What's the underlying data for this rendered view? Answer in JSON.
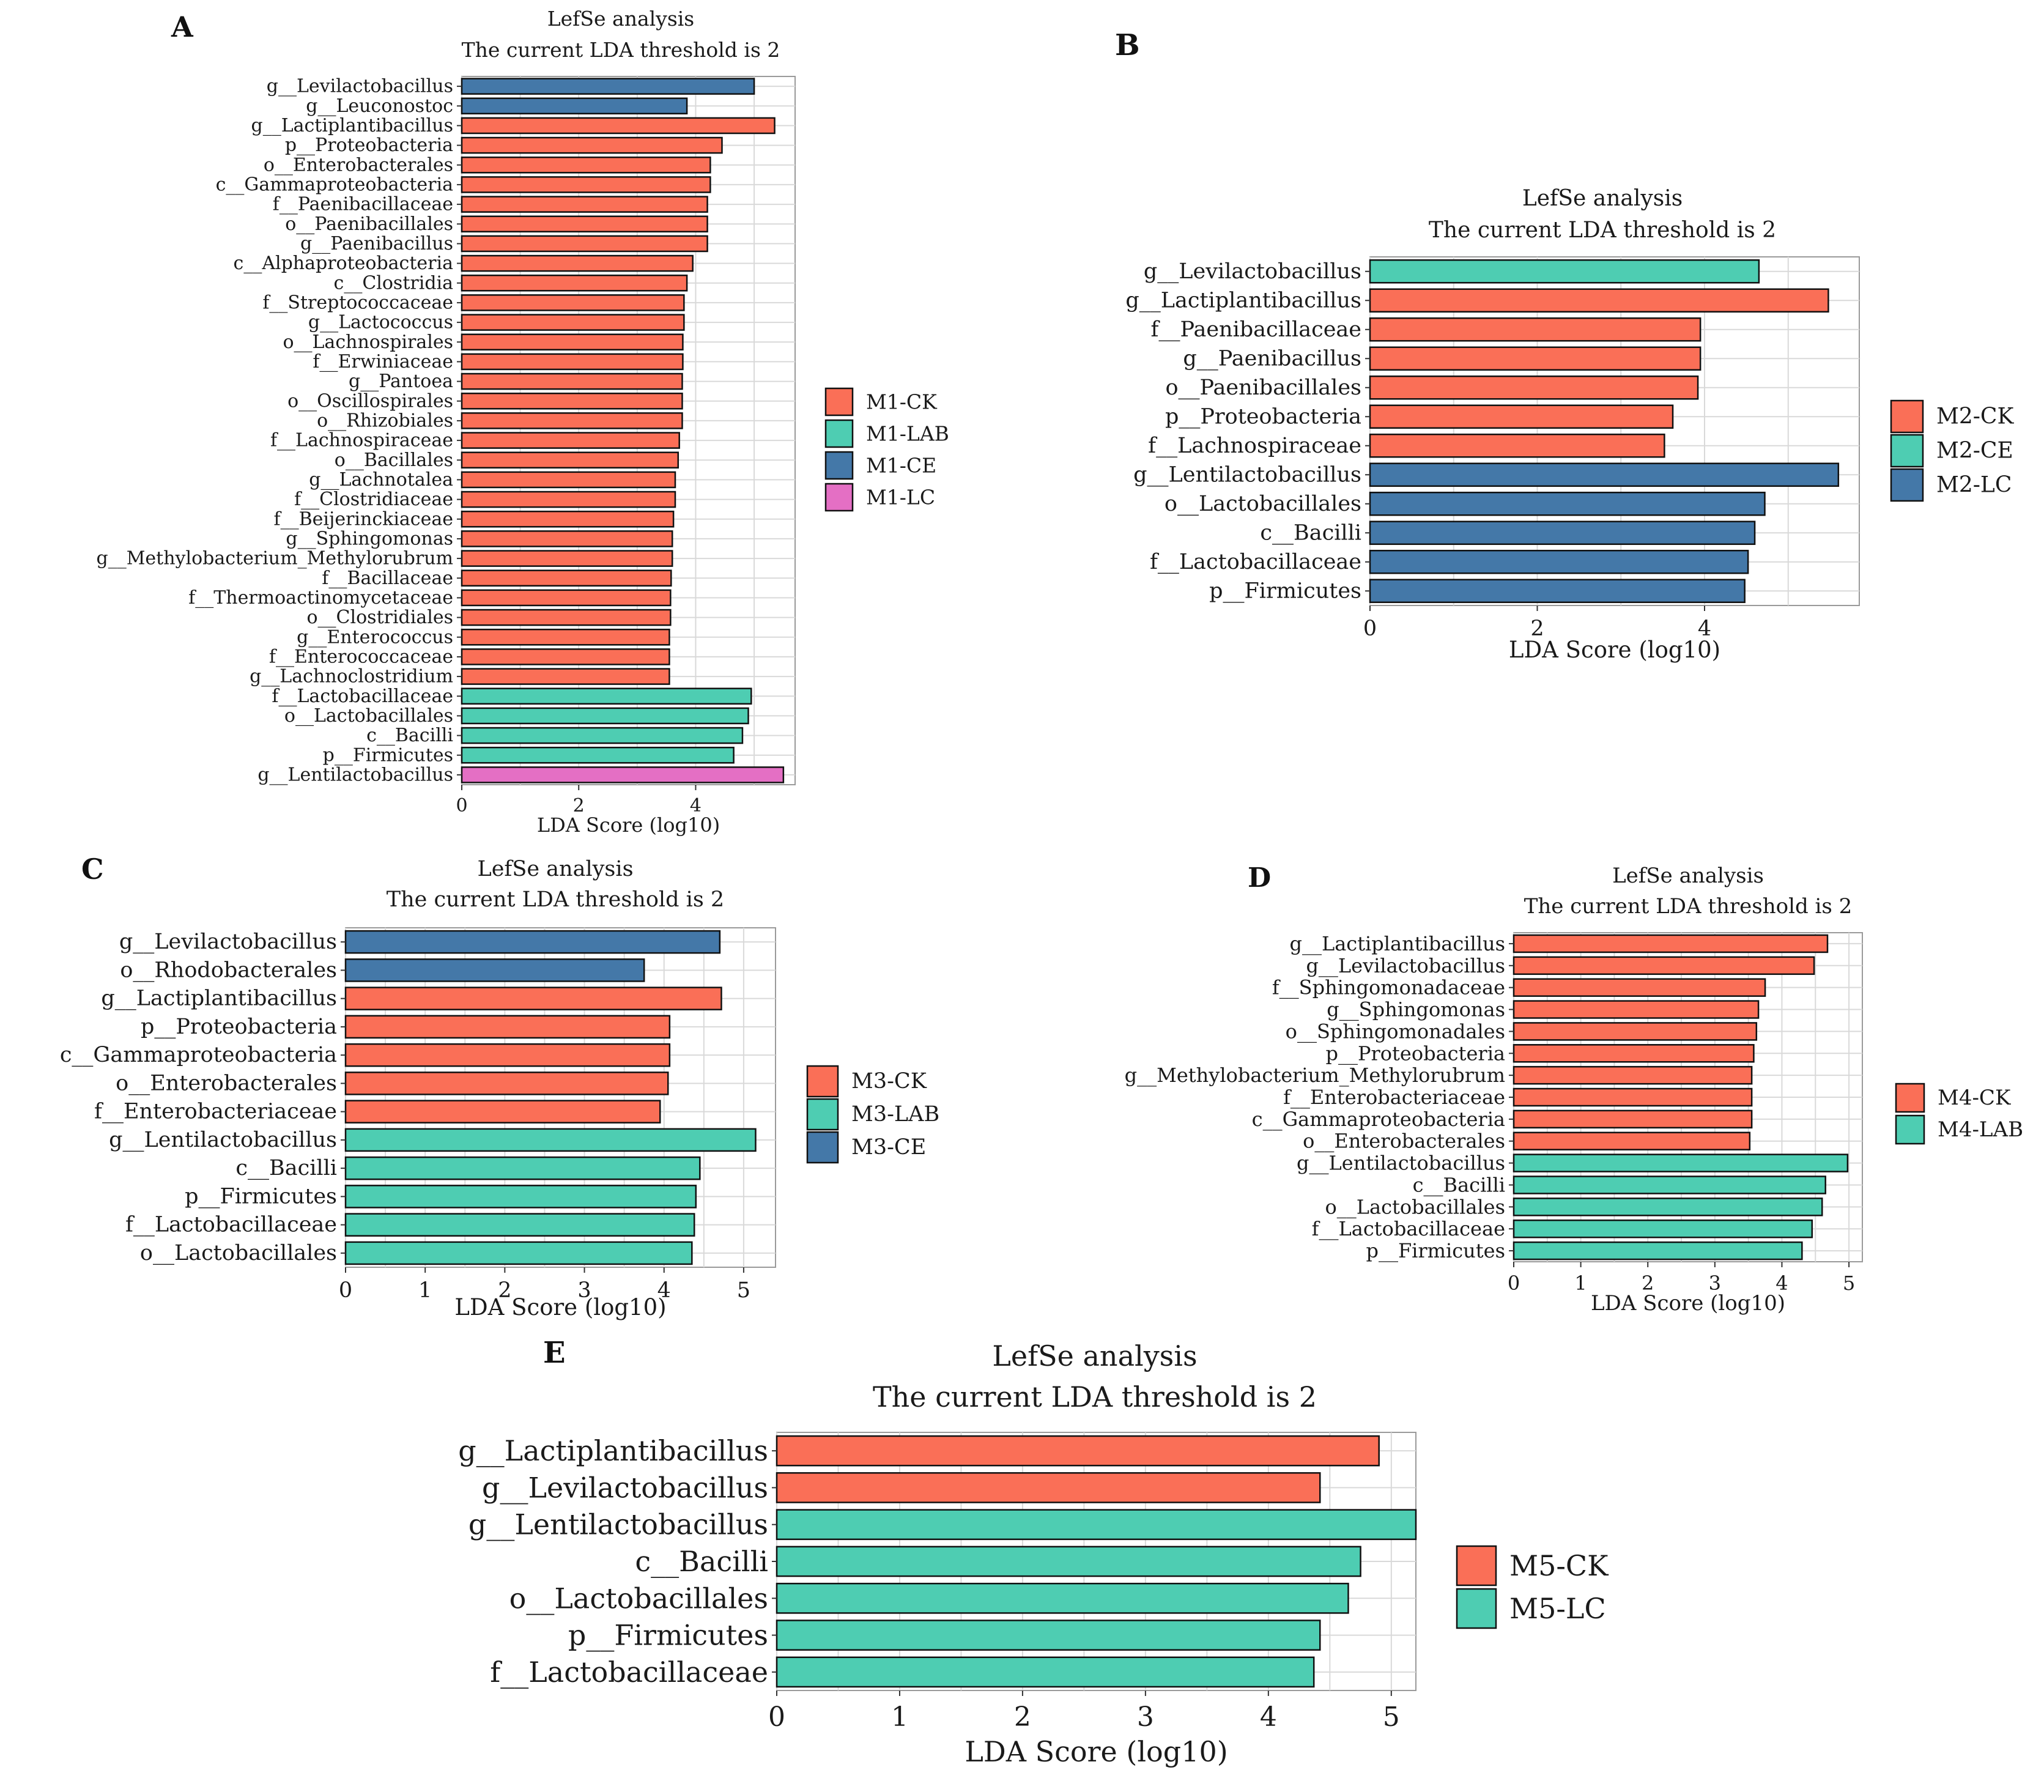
{
  "colors": {
    "CK": "#fa6f57",
    "LAB": "#4ecdb2",
    "CE": "#4478a8",
    "LC": "#e46fc4",
    "grid": "#d9d9d9",
    "bar_stroke": "#111111"
  },
  "chart_data": [
    {
      "panel": "A",
      "type": "bar",
      "orientation": "horizontal",
      "title": "LefSe analysis",
      "subtitle": "The current LDA threshold is 2",
      "xlabel": "LDA Score (log10)",
      "xticks": [
        0,
        2,
        4
      ],
      "xlim": [
        0,
        5.7
      ],
      "legend": [
        {
          "label": "M1-CK",
          "color_key": "CK"
        },
        {
          "label": "M1-LAB",
          "color_key": "LAB"
        },
        {
          "label": "M1-CE",
          "color_key": "CE"
        },
        {
          "label": "M1-LC",
          "color_key": "LC"
        }
      ],
      "bars": [
        {
          "label": "g__Levilactobacillus",
          "value": 5.0,
          "group": "CE"
        },
        {
          "label": "g__Leuconostoc",
          "value": 3.85,
          "group": "CE"
        },
        {
          "label": "g__Lactiplantibacillus",
          "value": 5.35,
          "group": "CK"
        },
        {
          "label": "p__Proteobacteria",
          "value": 4.45,
          "group": "CK"
        },
        {
          "label": "o__Enterobacterales",
          "value": 4.25,
          "group": "CK"
        },
        {
          "label": "c__Gammaproteobacteria",
          "value": 4.25,
          "group": "CK"
        },
        {
          "label": "f__Paenibacillaceae",
          "value": 4.2,
          "group": "CK"
        },
        {
          "label": "o__Paenibacillales",
          "value": 4.2,
          "group": "CK"
        },
        {
          "label": "g__Paenibacillus",
          "value": 4.2,
          "group": "CK"
        },
        {
          "label": "c__Alphaproteobacteria",
          "value": 3.95,
          "group": "CK"
        },
        {
          "label": "c__Clostridia",
          "value": 3.85,
          "group": "CK"
        },
        {
          "label": "f__Streptococcaceae",
          "value": 3.8,
          "group": "CK"
        },
        {
          "label": "g__Lactococcus",
          "value": 3.8,
          "group": "CK"
        },
        {
          "label": "o__Lachnospirales",
          "value": 3.78,
          "group": "CK"
        },
        {
          "label": "f__Erwiniaceae",
          "value": 3.78,
          "group": "CK"
        },
        {
          "label": "g__Pantoea",
          "value": 3.77,
          "group": "CK"
        },
        {
          "label": "o__Oscillospirales",
          "value": 3.77,
          "group": "CK"
        },
        {
          "label": "o__Rhizobiales",
          "value": 3.77,
          "group": "CK"
        },
        {
          "label": "f__Lachnospiraceae",
          "value": 3.72,
          "group": "CK"
        },
        {
          "label": "o__Bacillales",
          "value": 3.7,
          "group": "CK"
        },
        {
          "label": "g__Lachnotalea",
          "value": 3.65,
          "group": "CK"
        },
        {
          "label": "f__Clostridiaceae",
          "value": 3.65,
          "group": "CK"
        },
        {
          "label": "f__Beijerinckiaceae",
          "value": 3.62,
          "group": "CK"
        },
        {
          "label": "g__Sphingomonas",
          "value": 3.6,
          "group": "CK"
        },
        {
          "label": "g__Methylobacterium_Methylorubrum",
          "value": 3.6,
          "group": "CK"
        },
        {
          "label": "f__Bacillaceae",
          "value": 3.58,
          "group": "CK"
        },
        {
          "label": "f__Thermoactinomycetaceae",
          "value": 3.57,
          "group": "CK"
        },
        {
          "label": "o__Clostridiales",
          "value": 3.57,
          "group": "CK"
        },
        {
          "label": "g__Enterococcus",
          "value": 3.55,
          "group": "CK"
        },
        {
          "label": "f__Enterococcaceae",
          "value": 3.55,
          "group": "CK"
        },
        {
          "label": "g__Lachnoclostridium",
          "value": 3.55,
          "group": "CK"
        },
        {
          "label": "f__Lactobacillaceae",
          "value": 4.95,
          "group": "LAB"
        },
        {
          "label": "o__Lactobacillales",
          "value": 4.9,
          "group": "LAB"
        },
        {
          "label": "c__Bacilli",
          "value": 4.8,
          "group": "LAB"
        },
        {
          "label": "p__Firmicutes",
          "value": 4.65,
          "group": "LAB"
        },
        {
          "label": "g__Lentilactobacillus",
          "value": 5.5,
          "group": "LC"
        }
      ]
    },
    {
      "panel": "B",
      "type": "bar",
      "orientation": "horizontal",
      "title": "LefSe analysis",
      "subtitle": "The current LDA threshold is 2",
      "xlabel": "LDA Score (log10)",
      "xticks": [
        0,
        2,
        4
      ],
      "xlim": [
        0,
        5.85
      ],
      "legend": [
        {
          "label": "M2-CK",
          "color_key": "CK"
        },
        {
          "label": "M2-CE",
          "color_key": "LAB"
        },
        {
          "label": "M2-LC",
          "color_key": "CE"
        }
      ],
      "bars": [
        {
          "label": "g__Levilactobacillus",
          "value": 4.65,
          "group": "LAB"
        },
        {
          "label": "g__Lactiplantibacillus",
          "value": 5.48,
          "group": "CK"
        },
        {
          "label": "f__Paenibacillaceae",
          "value": 3.95,
          "group": "CK"
        },
        {
          "label": "g__Paenibacillus",
          "value": 3.95,
          "group": "CK"
        },
        {
          "label": "o__Paenibacillales",
          "value": 3.92,
          "group": "CK"
        },
        {
          "label": "p__Proteobacteria",
          "value": 3.62,
          "group": "CK"
        },
        {
          "label": "f__Lachnospiraceae",
          "value": 3.52,
          "group": "CK"
        },
        {
          "label": "g__Lentilactobacillus",
          "value": 5.6,
          "group": "CE"
        },
        {
          "label": "o__Lactobacillales",
          "value": 4.72,
          "group": "CE"
        },
        {
          "label": "c__Bacilli",
          "value": 4.6,
          "group": "CE"
        },
        {
          "label": "f__Lactobacillaceae",
          "value": 4.52,
          "group": "CE"
        },
        {
          "label": "p__Firmicutes",
          "value": 4.48,
          "group": "CE"
        }
      ]
    },
    {
      "panel": "C",
      "type": "bar",
      "orientation": "horizontal",
      "title": "LefSe analysis",
      "subtitle": "The current LDA threshold is 2",
      "xlabel": "LDA Score (log10)",
      "xticks": [
        0,
        1,
        2,
        3,
        4,
        5
      ],
      "xlim": [
        0,
        5.4
      ],
      "legend": [
        {
          "label": "M3-CK",
          "color_key": "CK"
        },
        {
          "label": "M3-LAB",
          "color_key": "LAB"
        },
        {
          "label": "M3-CE",
          "color_key": "CE"
        }
      ],
      "bars": [
        {
          "label": "g__Levilactobacillus",
          "value": 4.7,
          "group": "CE"
        },
        {
          "label": "o__Rhodobacterales",
          "value": 3.75,
          "group": "CE"
        },
        {
          "label": "g__Lactiplantibacillus",
          "value": 4.72,
          "group": "CK"
        },
        {
          "label": "p__Proteobacteria",
          "value": 4.07,
          "group": "CK"
        },
        {
          "label": "c__Gammaproteobacteria",
          "value": 4.07,
          "group": "CK"
        },
        {
          "label": "o__Enterobacterales",
          "value": 4.05,
          "group": "CK"
        },
        {
          "label": "f__Enterobacteriaceae",
          "value": 3.95,
          "group": "CK"
        },
        {
          "label": "g__Lentilactobacillus",
          "value": 5.15,
          "group": "LAB"
        },
        {
          "label": "c__Bacilli",
          "value": 4.45,
          "group": "LAB"
        },
        {
          "label": "p__Firmicutes",
          "value": 4.4,
          "group": "LAB"
        },
        {
          "label": "f__Lactobacillaceae",
          "value": 4.38,
          "group": "LAB"
        },
        {
          "label": "o__Lactobacillales",
          "value": 4.35,
          "group": "LAB"
        }
      ]
    },
    {
      "panel": "D",
      "type": "bar",
      "orientation": "horizontal",
      "title": "LefSe analysis",
      "subtitle": "The current LDA threshold is 2",
      "xlabel": "LDA Score (log10)",
      "xticks": [
        0,
        1,
        2,
        3,
        4,
        5
      ],
      "xlim": [
        0,
        5.2
      ],
      "legend": [
        {
          "label": "M4-CK",
          "color_key": "CK"
        },
        {
          "label": "M4-LAB",
          "color_key": "LAB"
        }
      ],
      "bars": [
        {
          "label": "g__Lactiplantibacillus",
          "value": 4.68,
          "group": "CK"
        },
        {
          "label": "g__Levilactobacillus",
          "value": 4.48,
          "group": "CK"
        },
        {
          "label": "f__Sphingomonadaceae",
          "value": 3.75,
          "group": "CK"
        },
        {
          "label": "g__Sphingomonas",
          "value": 3.65,
          "group": "CK"
        },
        {
          "label": "o__Sphingomonadales",
          "value": 3.62,
          "group": "CK"
        },
        {
          "label": "p__Proteobacteria",
          "value": 3.58,
          "group": "CK"
        },
        {
          "label": "g__Methylobacterium_Methylorubrum",
          "value": 3.55,
          "group": "CK"
        },
        {
          "label": "f__Enterobacteriaceae",
          "value": 3.55,
          "group": "CK"
        },
        {
          "label": "c__Gammaproteobacteria",
          "value": 3.55,
          "group": "CK"
        },
        {
          "label": "o__Enterobacterales",
          "value": 3.52,
          "group": "CK"
        },
        {
          "label": "g__Lentilactobacillus",
          "value": 4.98,
          "group": "LAB"
        },
        {
          "label": "c__Bacilli",
          "value": 4.65,
          "group": "LAB"
        },
        {
          "label": "o__Lactobacillales",
          "value": 4.6,
          "group": "LAB"
        },
        {
          "label": "f__Lactobacillaceae",
          "value": 4.45,
          "group": "LAB"
        },
        {
          "label": "p__Firmicutes",
          "value": 4.3,
          "group": "LAB"
        }
      ]
    },
    {
      "panel": "E",
      "type": "bar",
      "orientation": "horizontal",
      "title": "LefSe analysis",
      "subtitle": "The current LDA threshold is 2",
      "xlabel": "LDA Score (log10)",
      "xticks": [
        0,
        1,
        2,
        3,
        4,
        5
      ],
      "xlim": [
        0,
        5.2
      ],
      "legend": [
        {
          "label": "M5-CK",
          "color_key": "CK"
        },
        {
          "label": "M5-LC",
          "color_key": "LAB"
        }
      ],
      "bars": [
        {
          "label": "g__Lactiplantibacillus",
          "value": 4.9,
          "group": "CK"
        },
        {
          "label": "g__Levilactobacillus",
          "value": 4.42,
          "group": "CK"
        },
        {
          "label": "g__Lentilactobacillus",
          "value": 5.2,
          "group": "LAB"
        },
        {
          "label": "c__Bacilli",
          "value": 4.75,
          "group": "LAB"
        },
        {
          "label": "o__Lactobacillales",
          "value": 4.65,
          "group": "LAB"
        },
        {
          "label": "p__Firmicutes",
          "value": 4.42,
          "group": "LAB"
        },
        {
          "label": "f__Lactobacillaceae",
          "value": 4.37,
          "group": "LAB"
        }
      ]
    }
  ]
}
